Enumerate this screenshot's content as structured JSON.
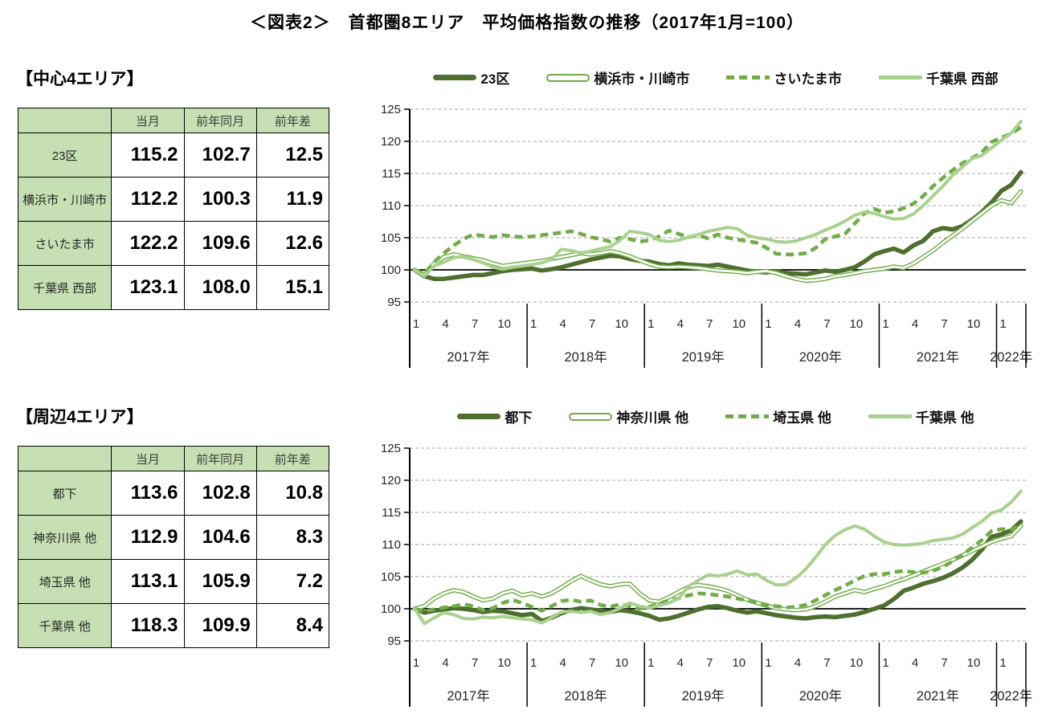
{
  "title": "＜図表2＞　首都圏8エリア　平均価格指数の推移（2017年1月=100）",
  "colors": {
    "dark_green": "#4e6f2d",
    "mid_green": "#70ad47",
    "light_green": "#a9d18e",
    "table_fill": "#c6e0b4",
    "gridline": "#a6a6a6",
    "axis": "#000000"
  },
  "sections": [
    {
      "heading": "【中心4エリア】",
      "table": {
        "headers": [
          "当月",
          "前年同月",
          "前年差"
        ],
        "rows": [
          {
            "label": "23区",
            "values": [
              "115.2",
              "102.7",
              "12.5"
            ]
          },
          {
            "label": "横浜市・川崎市",
            "values": [
              "112.2",
              "100.3",
              "11.9"
            ]
          },
          {
            "label": "さいたま市",
            "values": [
              "122.2",
              "109.6",
              "12.6"
            ]
          },
          {
            "label": "千葉県 西部",
            "values": [
              "123.1",
              "108.0",
              "15.1"
            ]
          }
        ]
      }
    },
    {
      "heading": "【周辺4エリア】",
      "table": {
        "headers": [
          "当月",
          "前年同月",
          "前年差"
        ],
        "rows": [
          {
            "label": "都下",
            "values": [
              "113.6",
              "102.8",
              "10.8"
            ]
          },
          {
            "label": "神奈川県 他",
            "values": [
              "112.9",
              "104.6",
              "8.3"
            ]
          },
          {
            "label": "埼玉県 他",
            "values": [
              "113.1",
              "105.9",
              "7.2"
            ]
          },
          {
            "label": "千葉県 他",
            "values": [
              "118.3",
              "109.9",
              "8.4"
            ]
          }
        ]
      }
    }
  ],
  "chart_data": [
    {
      "type": "line",
      "title": "中心4エリア 平均価格指数の推移（2017年1月=100）",
      "ylim": [
        95,
        125
      ],
      "y_tick_step": 5,
      "baseline": 100,
      "grid": true,
      "legend_position": "top",
      "month_ticks": [
        1,
        4,
        7,
        10
      ],
      "years": [
        {
          "label": "2017年",
          "months": 12
        },
        {
          "label": "2018年",
          "months": 12
        },
        {
          "label": "2019年",
          "months": 12
        },
        {
          "label": "2020年",
          "months": 12
        },
        {
          "label": "2021年",
          "months": 12
        },
        {
          "label": "2022年",
          "months": 3
        }
      ],
      "series": [
        {
          "name": "23区",
          "style": "thick",
          "values": [
            100,
            99,
            98.6,
            98.6,
            98.8,
            99,
            99.2,
            99.2,
            99.5,
            99.8,
            100,
            100.1,
            100.2,
            99.9,
            100.1,
            100.4,
            100.8,
            101.2,
            101.6,
            101.9,
            102.2,
            102.1,
            101.7,
            101.4,
            101.3,
            100.9,
            100.7,
            101,
            100.8,
            100.7,
            100.6,
            100.8,
            100.5,
            100.2,
            99.9,
            99.7,
            99.6,
            99.8,
            99.5,
            99.4,
            99.3,
            99.6,
            99.9,
            99.7,
            100,
            100.4,
            101.3,
            102.4,
            102.9,
            103.3,
            102.7,
            103.8,
            104.5,
            106,
            106.5,
            106.3,
            106.8,
            107.8,
            109,
            110.5,
            112.3,
            113.2,
            115.2
          ]
        },
        {
          "name": "横浜市・川崎市",
          "style": "hollow",
          "values": [
            100,
            99.2,
            101,
            102,
            102.4,
            102.1,
            101.8,
            101.5,
            101,
            100.6,
            100.8,
            101,
            101.2,
            101.4,
            101.7,
            102,
            102.3,
            102.6,
            102.4,
            102.6,
            102.9,
            102.6,
            102.1,
            101.5,
            100.9,
            100.5,
            100.4,
            100.5,
            100.4,
            100.3,
            100.1,
            99.9,
            99.8,
            99.7,
            99.5,
            99.7,
            99.8,
            99.5,
            99,
            98.6,
            98.3,
            98.4,
            98.6,
            99,
            99.2,
            99.5,
            99.8,
            100,
            100.2,
            100.5,
            100.3,
            101,
            102,
            103,
            104.2,
            105.3,
            106.4,
            107.6,
            108.8,
            110,
            110.8,
            110.4,
            112.2
          ]
        },
        {
          "name": "さいたま市",
          "style": "dashed",
          "values": [
            100,
            99.4,
            101.2,
            102.6,
            103.8,
            104.8,
            105.5,
            105.3,
            105.1,
            105.4,
            105.2,
            105.1,
            105.2,
            105.4,
            105.6,
            105.8,
            106,
            105.6,
            105.1,
            104.8,
            104.4,
            105,
            104.8,
            104.4,
            104.6,
            105.2,
            106.1,
            105.6,
            105.1,
            105.4,
            104.9,
            105.5,
            105,
            104.7,
            104.5,
            104.2,
            103.4,
            102.5,
            102.4,
            102.4,
            102.6,
            103.4,
            104.8,
            105.2,
            105.6,
            107.2,
            108.8,
            109.5,
            108.9,
            109.1,
            109.6,
            110.3,
            111.5,
            113,
            114.3,
            115.5,
            116.6,
            117.4,
            118.3,
            119.9,
            120.6,
            121.2,
            122.2
          ]
        },
        {
          "name": "千葉県 西部",
          "style": "light",
          "values": [
            100,
            99,
            100.6,
            101.2,
            101.9,
            102.1,
            101.6,
            101.1,
            100.4,
            100.1,
            100.4,
            100.6,
            100.8,
            101.1,
            101.6,
            103.2,
            103,
            102.6,
            102.9,
            103.3,
            103.6,
            104.6,
            106,
            105.8,
            105.5,
            104.6,
            104.4,
            104.6,
            105.1,
            105.5,
            106,
            106.3,
            106.6,
            106.4,
            105.4,
            105,
            104.8,
            104.4,
            104.3,
            104.5,
            105,
            105.5,
            106.2,
            106.8,
            107.6,
            108.5,
            109,
            108.8,
            108.3,
            107.9,
            108,
            108.7,
            110,
            111.5,
            113,
            114.7,
            116,
            117.3,
            117.8,
            119,
            120.2,
            121.3,
            123.1
          ]
        }
      ]
    },
    {
      "type": "line",
      "title": "周辺4エリア 平均価格指数の推移（2017年1月=100）",
      "ylim": [
        95,
        125
      ],
      "y_tick_step": 5,
      "baseline": 100,
      "grid": true,
      "legend_position": "top",
      "month_ticks": [
        1,
        4,
        7,
        10
      ],
      "years": [
        {
          "label": "2017年",
          "months": 12
        },
        {
          "label": "2018年",
          "months": 12
        },
        {
          "label": "2019年",
          "months": 12
        },
        {
          "label": "2020年",
          "months": 12
        },
        {
          "label": "2021年",
          "months": 12
        },
        {
          "label": "2022年",
          "months": 3
        }
      ],
      "series": [
        {
          "name": "都下",
          "style": "thick",
          "values": [
            100,
            99.4,
            99.7,
            99.9,
            100.1,
            100,
            99.8,
            99.5,
            99.7,
            99.6,
            99.3,
            99,
            99.2,
            98.1,
            98.6,
            99.3,
            99.8,
            100.1,
            99.9,
            99.7,
            99.5,
            99.8,
            99.6,
            99.3,
            98.9,
            98.3,
            98.5,
            98.9,
            99.4,
            99.9,
            100.3,
            100.4,
            100.1,
            99.7,
            99.4,
            99.6,
            99.3,
            99,
            98.8,
            98.6,
            98.5,
            98.7,
            98.8,
            98.7,
            98.9,
            99.1,
            99.5,
            100,
            100.5,
            101.5,
            102.8,
            103.3,
            103.9,
            104.3,
            104.8,
            105.5,
            106.4,
            107.6,
            109.2,
            111.2,
            111.6,
            112.2,
            113.6
          ]
        },
        {
          "name": "神奈川県 他",
          "style": "hollow",
          "values": [
            100,
            100.4,
            101.6,
            102.4,
            102.9,
            102.6,
            101.9,
            101.3,
            101.6,
            102.4,
            102.8,
            102.1,
            102.4,
            101.9,
            102.4,
            103.3,
            104.3,
            105.1,
            104.4,
            103.8,
            103.5,
            103.8,
            103.9,
            102.4,
            101.3,
            101.1,
            101.8,
            102.6,
            103.4,
            103.7,
            103.5,
            103.2,
            102.8,
            102.1,
            101.4,
            100.9,
            100.5,
            100.1,
            99.9,
            99.8,
            99.9,
            100.4,
            101.1,
            101.9,
            102.4,
            102.9,
            102.6,
            103.1,
            103.5,
            104.1,
            104.6,
            105.2,
            105.8,
            106.4,
            107,
            107.6,
            108.3,
            109,
            109.7,
            110.4,
            110.9,
            111.3,
            112.9
          ]
        },
        {
          "name": "埼玉県 他",
          "style": "dashed",
          "values": [
            100,
            99.6,
            99.9,
            100.2,
            100.4,
            100.7,
            100.4,
            99.8,
            100.1,
            100.9,
            101.4,
            100.9,
            100.3,
            99.7,
            100.4,
            101.2,
            101.4,
            101.1,
            101.3,
            100.6,
            100.3,
            100.7,
            100.4,
            100,
            100.3,
            100.8,
            101.3,
            101.6,
            102.1,
            102.4,
            102.3,
            102.1,
            101.9,
            101.6,
            101.3,
            101,
            100.6,
            100.4,
            100.2,
            100.3,
            100.6,
            101.3,
            102.1,
            102.9,
            103.6,
            104.4,
            105.1,
            105.4,
            105.4,
            105.7,
            105.9,
            105.7,
            105.6,
            105.9,
            106.5,
            107.4,
            108.4,
            109.5,
            110.7,
            112.1,
            112.4,
            112.3,
            113.1
          ]
        },
        {
          "name": "千葉県 他",
          "style": "light",
          "values": [
            100,
            97.7,
            98.6,
            99.4,
            99.1,
            98.5,
            98.4,
            98.7,
            98.6,
            98.8,
            98.6,
            98.4,
            98.3,
            97.8,
            98.6,
            99.5,
            99.6,
            99.4,
            99.6,
            99.1,
            99.4,
            100.1,
            100.9,
            100.4,
            100.1,
            100.5,
            100.9,
            101.6,
            103.5,
            104.4,
            105.3,
            105.1,
            105.4,
            105.9,
            105.3,
            105.4,
            104.4,
            103.7,
            103.8,
            104.8,
            106.2,
            108,
            110,
            111.4,
            112.3,
            112.9,
            112.4,
            111.3,
            110.4,
            110,
            109.9,
            110,
            110.2,
            110.6,
            110.8,
            111,
            111.6,
            112.6,
            113.6,
            114.9,
            115.4,
            116.6,
            118.3
          ]
        }
      ]
    }
  ]
}
